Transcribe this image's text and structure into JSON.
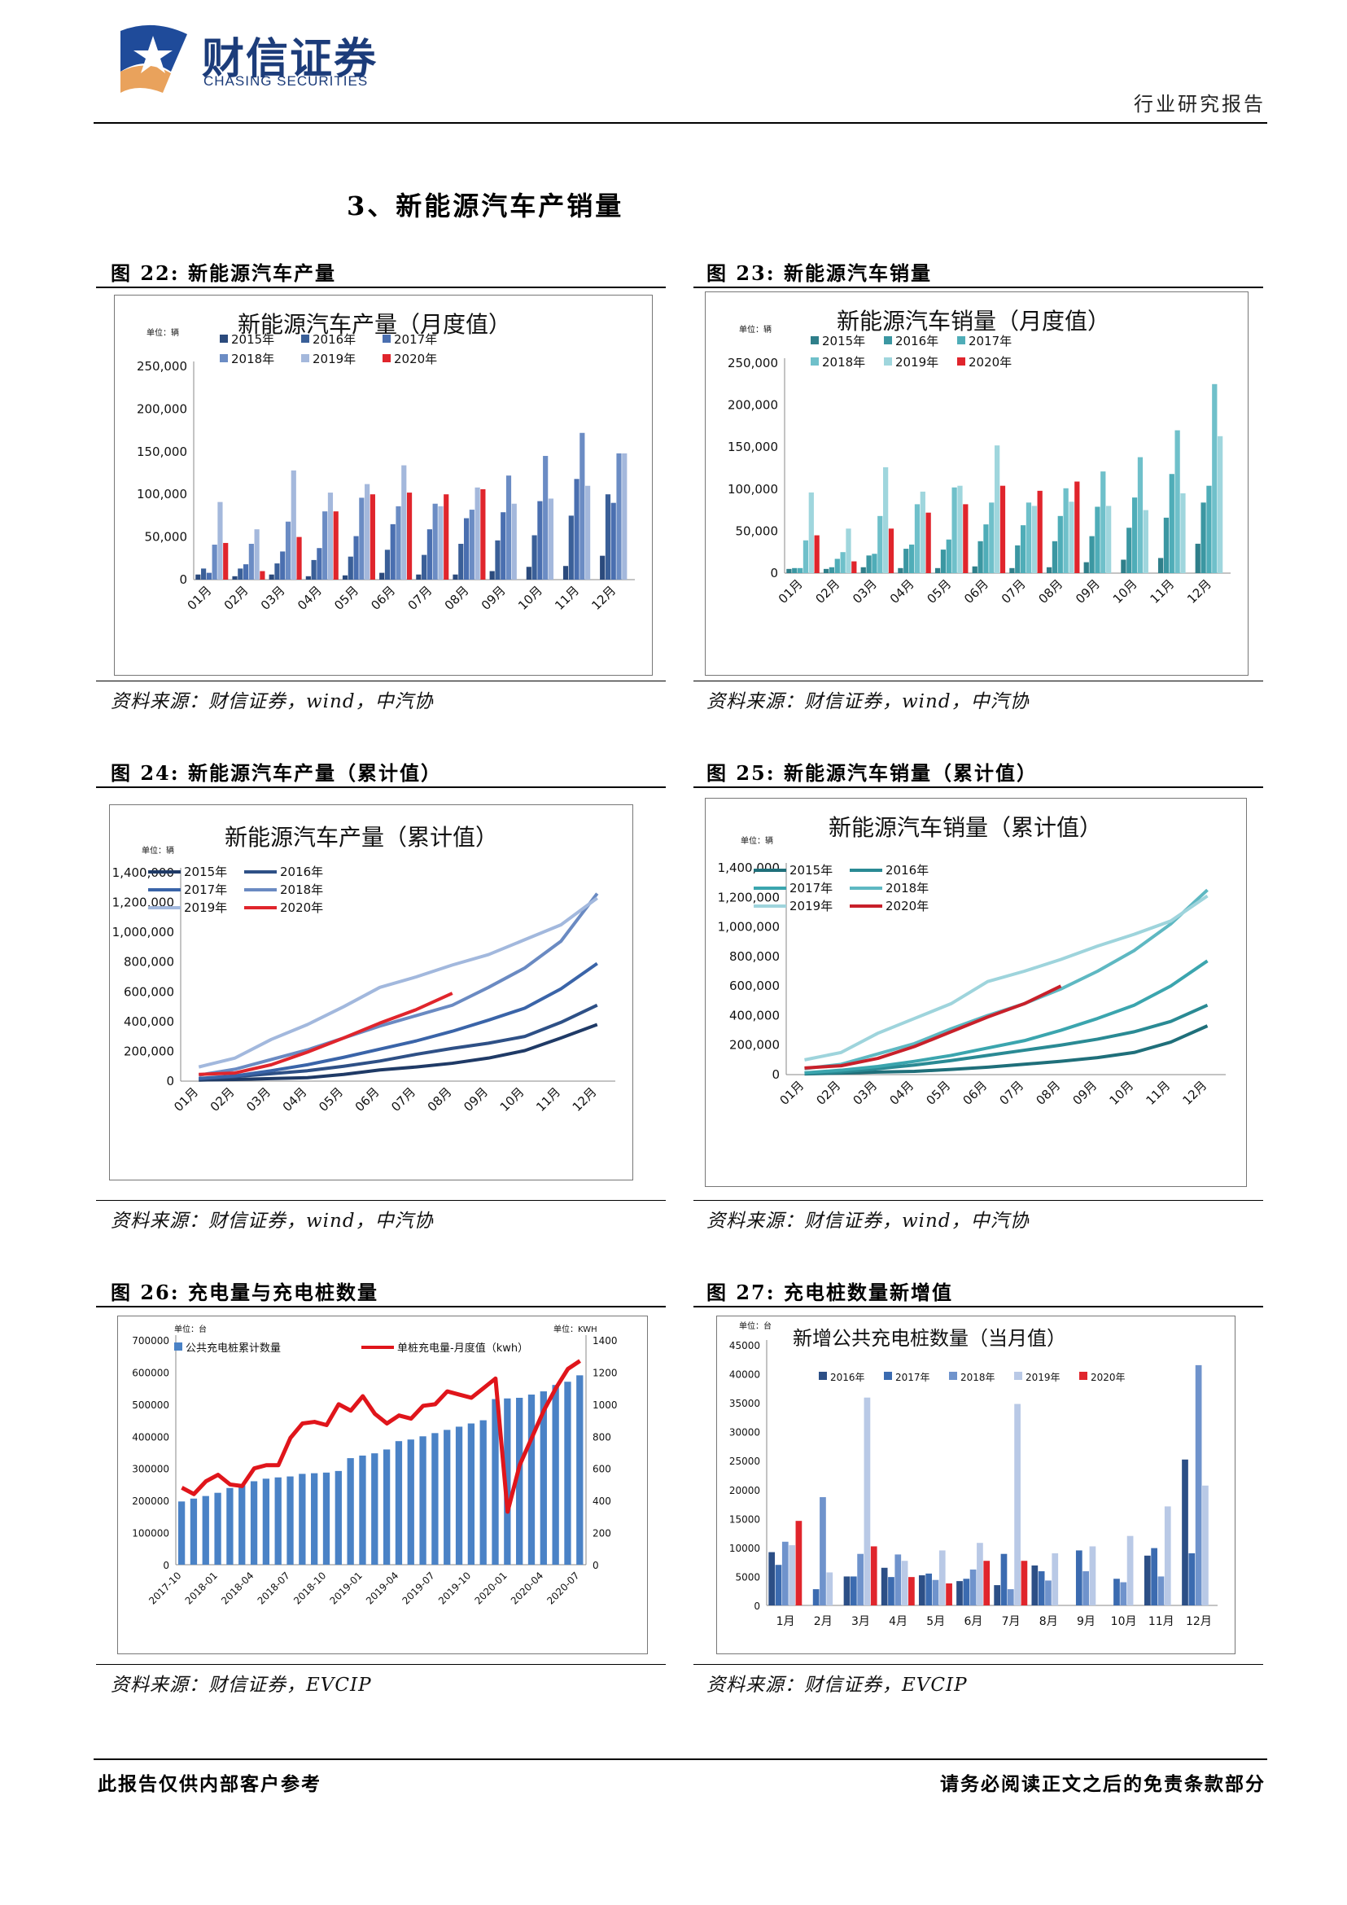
{
  "header": {
    "brand_cn": "财信证券",
    "brand_en": "CHASING SECURITIES",
    "report_type": "行业研究报告"
  },
  "section_title": "3、新能源汽车产销量",
  "figures": [
    {
      "label": "图 22: 新能源汽车产量",
      "source": "资料来源：财信证券，wind，中汽协"
    },
    {
      "label": "图 23: 新能源汽车销量",
      "source": "资料来源：财信证券，wind，中汽协"
    },
    {
      "label": "图 24: 新能源汽车产量（累计值）",
      "source": "资料来源：财信证券，wind，中汽协"
    },
    {
      "label": "图 25: 新能源汽车销量（累计值）",
      "source": "资料来源：财信证券，wind，中汽协"
    },
    {
      "label": "图 26: 充电量与充电桩数量",
      "source": "资料来源：财信证券，EVCIP"
    },
    {
      "label": "图 27: 充电桩数量新增值",
      "source": "资料来源：财信证券，EVCIP"
    }
  ],
  "footer": {
    "left": "此报告仅供内部客户参考",
    "right": "请务必阅读正文之后的免责条款部分"
  },
  "chart_data": [
    {
      "id": "c22",
      "type": "bar",
      "title": "新能源汽车产量（月度值）",
      "unit_label": "单位：辆",
      "categories": [
        "01月",
        "02月",
        "03月",
        "04月",
        "05月",
        "06月",
        "07月",
        "08月",
        "09月",
        "10月",
        "11月",
        "12月"
      ],
      "ylim": [
        0,
        250000
      ],
      "yticks": [
        "0",
        "50,000",
        "100,000",
        "150,000",
        "200,000",
        "250,000"
      ],
      "legend_position": "top",
      "series": [
        {
          "name": "2015年",
          "color": "#2b4a7c",
          "values": [
            6000,
            4000,
            6000,
            4000,
            5000,
            8000,
            6000,
            6000,
            10000,
            15000,
            16000,
            28000
          ]
        },
        {
          "name": "2016年",
          "color": "#3a5f98",
          "values": [
            13000,
            13000,
            19000,
            23000,
            27000,
            35000,
            29000,
            42000,
            46000,
            52000,
            75000,
            100000
          ]
        },
        {
          "name": "2017年",
          "color": "#4a6fb0",
          "values": [
            8000,
            18000,
            33000,
            37000,
            51000,
            65000,
            59000,
            72000,
            79000,
            92000,
            118000,
            90000
          ]
        },
        {
          "name": "2018年",
          "color": "#6b8cc4",
          "values": [
            41000,
            42000,
            68000,
            80000,
            96000,
            86000,
            89000,
            82000,
            122000,
            145000,
            172000,
            148000
          ]
        },
        {
          "name": "2019年",
          "color": "#a4b8dc",
          "values": [
            91000,
            59000,
            128000,
            102000,
            112000,
            134000,
            86000,
            108000,
            89000,
            95000,
            110000,
            148000
          ]
        },
        {
          "name": "2020年",
          "color": "#e0252c",
          "values": [
            43000,
            10000,
            50000,
            80000,
            100000,
            102000,
            100000,
            106000,
            null,
            null,
            null,
            null
          ]
        }
      ]
    },
    {
      "id": "c23",
      "type": "bar",
      "title": "新能源汽车销量（月度值）",
      "unit_label": "单位：辆",
      "categories": [
        "01月",
        "02月",
        "03月",
        "04月",
        "05月",
        "06月",
        "07月",
        "08月",
        "09月",
        "10月",
        "11月",
        "12月"
      ],
      "ylim": [
        0,
        250000
      ],
      "yticks": [
        "0",
        "50,000",
        "100,000",
        "150,000",
        "200,000",
        "250,000"
      ],
      "legend_position": "top",
      "series": [
        {
          "name": "2015年",
          "color": "#2f7f8a",
          "values": [
            5000,
            5000,
            7000,
            6000,
            6000,
            8000,
            6000,
            7000,
            13000,
            16000,
            18000,
            35000
          ]
        },
        {
          "name": "2016年",
          "color": "#3b97a2",
          "values": [
            6000,
            7000,
            21000,
            29000,
            28000,
            38000,
            33000,
            38000,
            44000,
            54000,
            66000,
            84000
          ]
        },
        {
          "name": "2017年",
          "color": "#4fadb8",
          "values": [
            6000,
            17000,
            23000,
            34000,
            40000,
            58000,
            57000,
            68000,
            79000,
            90000,
            118000,
            104000
          ]
        },
        {
          "name": "2018年",
          "color": "#6fc0ca",
          "values": [
            39000,
            25000,
            68000,
            82000,
            102000,
            84000,
            84000,
            101000,
            121000,
            138000,
            170000,
            225000
          ]
        },
        {
          "name": "2019年",
          "color": "#9fd6dd",
          "values": [
            96000,
            53000,
            126000,
            97000,
            104000,
            152000,
            80000,
            85000,
            80000,
            75000,
            95000,
            163000
          ]
        },
        {
          "name": "2020年",
          "color": "#e0252c",
          "values": [
            45000,
            14000,
            53000,
            72000,
            82000,
            104000,
            98000,
            109000,
            null,
            null,
            null,
            null
          ]
        }
      ]
    },
    {
      "id": "c24",
      "type": "line",
      "title": "新能源汽车产量（累计值）",
      "unit_label": "单位：辆",
      "categories": [
        "01月",
        "02月",
        "03月",
        "04月",
        "05月",
        "06月",
        "07月",
        "08月",
        "09月",
        "10月",
        "11月",
        "12月"
      ],
      "ylim": [
        0,
        1400000
      ],
      "yticks": [
        "0",
        "200,000",
        "400,000",
        "600,000",
        "800,000",
        "1,000,000",
        "1,200,000",
        "1,400,000"
      ],
      "legend_position": "top-left",
      "series": [
        {
          "name": "2015年",
          "color": "#1f3a66",
          "values": [
            7000,
            11000,
            17000,
            23000,
            45000,
            75000,
            95000,
            120000,
            155000,
            205000,
            290000,
            380000
          ]
        },
        {
          "name": "2016年",
          "color": "#2e5086",
          "values": [
            16000,
            30000,
            50000,
            70000,
            100000,
            135000,
            180000,
            220000,
            255000,
            300000,
            395000,
            510000
          ]
        },
        {
          "name": "2017年",
          "color": "#3a64a8",
          "values": [
            18000,
            35000,
            70000,
            110000,
            160000,
            215000,
            270000,
            335000,
            410000,
            490000,
            620000,
            790000
          ]
        },
        {
          "name": "2018年",
          "color": "#6a8ac2",
          "values": [
            40000,
            80000,
            145000,
            210000,
            290000,
            370000,
            440000,
            510000,
            630000,
            760000,
            940000,
            1260000
          ]
        },
        {
          "name": "2019年",
          "color": "#a2b8dd",
          "values": [
            95000,
            155000,
            280000,
            380000,
            500000,
            630000,
            700000,
            780000,
            850000,
            950000,
            1050000,
            1230000
          ]
        },
        {
          "name": "2020年",
          "color": "#e0252c",
          "values": [
            45000,
            55000,
            110000,
            195000,
            290000,
            390000,
            480000,
            590000,
            null,
            null,
            null,
            null
          ]
        }
      ]
    },
    {
      "id": "c25",
      "type": "line",
      "title": "新能源汽车销量（累计值）",
      "unit_label": "单位：辆",
      "categories": [
        "01月",
        "02月",
        "03月",
        "04月",
        "05月",
        "06月",
        "07月",
        "08月",
        "09月",
        "10月",
        "11月",
        "12月"
      ],
      "ylim": [
        0,
        1400000
      ],
      "yticks": [
        "0",
        "200,000",
        "400,000",
        "600,000",
        "800,000",
        "1,000,000",
        "1,200,000",
        "1,400,000"
      ],
      "legend_position": "top-left",
      "series": [
        {
          "name": "2015年",
          "color": "#1f6f7a",
          "values": [
            5000,
            10000,
            17000,
            22000,
            35000,
            50000,
            70000,
            90000,
            115000,
            150000,
            220000,
            330000
          ]
        },
        {
          "name": "2016年",
          "color": "#2a8a94",
          "values": [
            10000,
            18000,
            40000,
            65000,
            95000,
            130000,
            165000,
            200000,
            240000,
            290000,
            360000,
            470000
          ]
        },
        {
          "name": "2017年",
          "color": "#3ba5ae",
          "values": [
            12000,
            30000,
            55000,
            90000,
            130000,
            180000,
            230000,
            300000,
            380000,
            470000,
            600000,
            770000
          ]
        },
        {
          "name": "2018年",
          "color": "#5eb8c2",
          "values": [
            40000,
            70000,
            140000,
            210000,
            310000,
            400000,
            480000,
            580000,
            700000,
            840000,
            1020000,
            1250000
          ]
        },
        {
          "name": "2019年",
          "color": "#9ed4dc",
          "values": [
            100000,
            150000,
            280000,
            380000,
            480000,
            630000,
            700000,
            780000,
            870000,
            950000,
            1040000,
            1210000
          ]
        },
        {
          "name": "2020年",
          "color": "#c8202a",
          "values": [
            45000,
            60000,
            110000,
            190000,
            290000,
            390000,
            480000,
            600000,
            null,
            null,
            null,
            null
          ]
        }
      ]
    },
    {
      "id": "c26",
      "type": "bar",
      "unit_label_left": "单位：台",
      "unit_label_right": "单位：KWH",
      "categories": [
        "2017-10",
        "2017-11",
        "2017-12",
        "2018-01",
        "2018-02",
        "2018-03",
        "2018-04",
        "2018-05",
        "2018-06",
        "2018-07",
        "2018-08",
        "2018-09",
        "2018-10",
        "2018-11",
        "2018-12",
        "2019-01",
        "2019-02",
        "2019-03",
        "2019-04",
        "2019-05",
        "2019-06",
        "2019-07",
        "2019-08",
        "2019-09",
        "2019-10",
        "2019-11",
        "2019-12",
        "2020-01",
        "2020-02",
        "2020-03",
        "2020-04",
        "2020-05",
        "2020-06",
        "2020-07"
      ],
      "xtick_labels": [
        "2017-10",
        "2018-01",
        "2018-04",
        "2018-07",
        "2018-10",
        "2019-01",
        "2019-04",
        "2019-07",
        "2019-10",
        "2020-01",
        "2020-04",
        "2020-07"
      ],
      "ylim": [
        0,
        700000
      ],
      "yticks": [
        "0",
        "100000",
        "200000",
        "300000",
        "400000",
        "500000",
        "600000",
        "700000"
      ],
      "y2lim": [
        0,
        1400
      ],
      "y2ticks": [
        "0",
        "200",
        "400",
        "600",
        "800",
        "1000",
        "1200",
        "1400"
      ],
      "legend_position": "top",
      "series": [
        {
          "name": "公共充电桩累计数量",
          "color": "#4a82c6",
          "axis": "left",
          "values": [
            197000,
            206000,
            214000,
            224000,
            239000,
            248000,
            260000,
            268000,
            272000,
            275000,
            283000,
            285000,
            287000,
            292000,
            332000,
            340000,
            347000,
            359000,
            385000,
            390000,
            400000,
            410000,
            420000,
            430000,
            440000,
            450000,
            516000,
            518000,
            520000,
            530000,
            540000,
            560000,
            570000,
            590000
          ]
        },
        {
          "name": "单桩充电量-月度值（kwh）",
          "color": "#e0151b",
          "axis": "right",
          "type": "line",
          "values": [
            480,
            440,
            520,
            560,
            500,
            490,
            600,
            620,
            620,
            790,
            880,
            890,
            870,
            1000,
            960,
            1050,
            940,
            880,
            930,
            910,
            990,
            1000,
            1080,
            1060,
            1040,
            1100,
            1160,
            330,
            620,
            790,
            960,
            1100,
            1220,
            1270
          ]
        }
      ]
    },
    {
      "id": "c27",
      "type": "bar",
      "title": "新增公共充电桩数量（当月值）",
      "unit_label": "单位：台",
      "categories": [
        "1月",
        "2月",
        "3月",
        "4月",
        "5月",
        "6月",
        "7月",
        "8月",
        "9月",
        "10月",
        "11月",
        "12月"
      ],
      "ylim": [
        0,
        45000
      ],
      "yticks": [
        "0",
        "5000",
        "10000",
        "15000",
        "20000",
        "25000",
        "30000",
        "35000",
        "40000",
        "45000"
      ],
      "legend_position": "top",
      "series": [
        {
          "name": "2016年",
          "color": "#2c4f86",
          "values": [
            9200,
            null,
            5000,
            6500,
            5200,
            4200,
            3500,
            6900,
            null,
            null,
            8600,
            25200
          ]
        },
        {
          "name": "2017年",
          "color": "#3b6bb0",
          "values": [
            7000,
            2800,
            5000,
            4900,
            5500,
            4600,
            8900,
            5900,
            9500,
            4600,
            9900,
            9000
          ]
        },
        {
          "name": "2018年",
          "color": "#6f93cc",
          "values": [
            11000,
            18700,
            8900,
            8800,
            4400,
            6200,
            2800,
            4300,
            5900,
            4000,
            5000,
            41500
          ]
        },
        {
          "name": "2019年",
          "color": "#b9c9e6",
          "values": [
            10400,
            5700,
            35900,
            7700,
            9500,
            10800,
            34800,
            9000,
            10200,
            12000,
            17100,
            20700
          ]
        },
        {
          "name": "2020年",
          "color": "#e0252c",
          "values": [
            14600,
            null,
            10200,
            4900,
            3800,
            7700,
            7700,
            null,
            null,
            null,
            null,
            null
          ]
        }
      ]
    }
  ]
}
